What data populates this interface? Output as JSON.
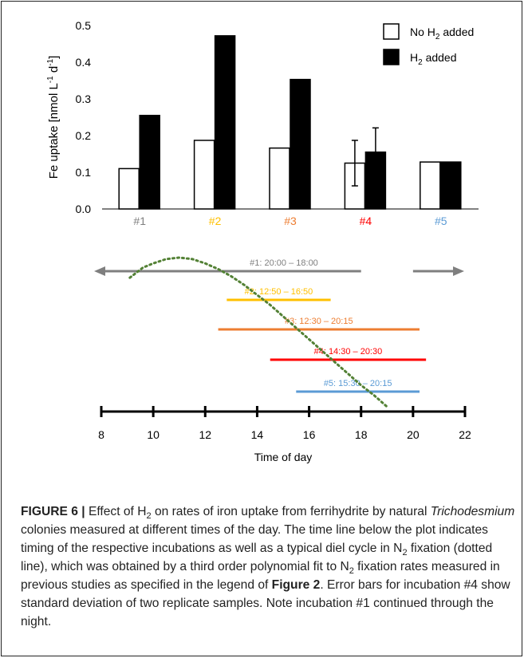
{
  "chart_data": [
    {
      "type": "bar",
      "categories": [
        "#1",
        "#2",
        "#3",
        "#4",
        "#5"
      ],
      "category_colors": [
        "#7f7f7f",
        "#ffc000",
        "#ed7d31",
        "#ff0000",
        "#5b9bd5"
      ],
      "ylabel": "Fe uptake [nmol L",
      "ylabel_sup1": "-1",
      "ylabel_mid": " d",
      "ylabel_sup2": "-1",
      "ylabel_end": "]",
      "ylim": [
        0,
        0.5
      ],
      "yticks": [
        "0.0",
        "0.1",
        "0.2",
        "0.3",
        "0.4",
        "0.5"
      ],
      "ytick_values": [
        0,
        0.1,
        0.2,
        0.3,
        0.4,
        0.5
      ],
      "series": [
        {
          "legend_prefix": "No H",
          "legend_sub": "2",
          "legend_suffix": " added",
          "fill": "#ffffff",
          "values": [
            0.11,
            0.187,
            0.166,
            0.125,
            0.128
          ],
          "error": [
            null,
            null,
            null,
            0.062,
            null
          ]
        },
        {
          "legend_prefix": "H",
          "legend_sub": "2",
          "legend_suffix": " added",
          "fill": "#000000",
          "values": [
            0.255,
            0.472,
            0.353,
            0.155,
            0.128
          ],
          "error": [
            null,
            null,
            null,
            0.066,
            null
          ]
        }
      ]
    },
    {
      "type": "timeline",
      "xlabel": "Time of day",
      "xlim": [
        8,
        22
      ],
      "xticks": [
        "8",
        "10",
        "12",
        "14",
        "16",
        "18",
        "20",
        "22"
      ],
      "xtick_values": [
        8,
        10,
        12,
        14,
        16,
        18,
        20,
        22
      ],
      "intervals": [
        {
          "label": "#1: 20:00 – 18:00",
          "color": "#7f7f7f",
          "segments": [
            [
              8.0,
              18.0
            ],
            [
              20.0,
              21.7
            ]
          ],
          "arrows": true
        },
        {
          "label": "#2: 12:50 – 16:50",
          "color": "#ffc000",
          "segments": [
            [
              12.83,
              16.83
            ]
          ]
        },
        {
          "label": "#3: 12:30 – 20:15",
          "color": "#ed7d31",
          "segments": [
            [
              12.5,
              20.25
            ]
          ]
        },
        {
          "label": "#4: 14:30 – 20:30",
          "color": "#ff0000",
          "segments": [
            [
              14.5,
              20.5
            ]
          ]
        },
        {
          "label": "#5: 15:30 – 20:15",
          "color": "#5b9bd5",
          "segments": [
            [
              15.5,
              20.25
            ]
          ]
        }
      ],
      "n2_fixation_curve": {
        "color": "#538135",
        "x": [
          9.1,
          9.6,
          10.0,
          10.5,
          11.0,
          11.5,
          12.0,
          12.5,
          13.0,
          13.5,
          14.0,
          14.5,
          15.0,
          15.5,
          16.0,
          16.5,
          17.0,
          17.5,
          18.0,
          18.5,
          19.0
        ],
        "y": [
          0.9,
          0.97,
          1.0,
          1.03,
          1.04,
          1.03,
          1.0,
          0.96,
          0.91,
          0.85,
          0.78,
          0.71,
          0.63,
          0.55,
          0.47,
          0.39,
          0.31,
          0.23,
          0.15,
          0.08,
          0.0
        ]
      }
    }
  ],
  "caption": {
    "label": "FIGURE 6 | ",
    "t1": "Effect of H",
    "t1_sub": "2",
    "t2": " on rates of iron uptake from ferrihydrite by natural ",
    "t2_italic": "Trichodesmium",
    "t3": " colonies measured at different times of the day. The time line below the plot indicates timing of the respective incubations as well as a typical diel cycle in N",
    "t3_sub": "2",
    "t4": " fixation (dotted line), which was obtained by a third order polynomial fit to N",
    "t4_sub": "2",
    "t5": " fixation rates measured in previous studies as specified in the legend of ",
    "t5_ref": "Figure 2",
    "t6": ". Error bars for incubation #4 show standard deviation of two replicate samples. Note incubation #1 continued through the night."
  }
}
